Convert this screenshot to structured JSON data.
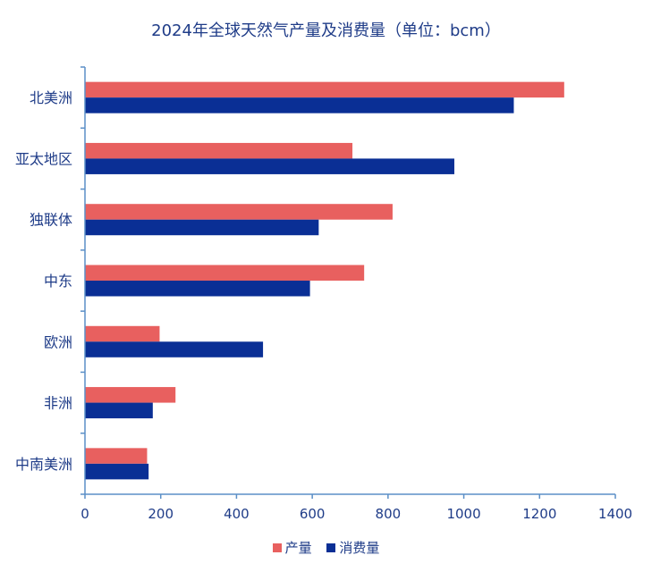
{
  "chart_data": {
    "type": "bar",
    "orientation": "horizontal",
    "title": "2024年全球天然气产量及消费量（单位：bcm）",
    "categories": [
      "北美洲",
      "亚太地区",
      "独联体",
      "中东",
      "欧洲",
      "非洲",
      "中南美洲"
    ],
    "series": [
      {
        "name": "产量",
        "color": "#e8605f",
        "values": [
          1265,
          706,
          812,
          737,
          197,
          239,
          164
        ]
      },
      {
        "name": "消费量",
        "color": "#0a2f95",
        "values": [
          1132,
          975,
          617,
          594,
          470,
          179,
          168
        ]
      }
    ],
    "xlim": [
      0,
      1400
    ],
    "xticks": [
      0,
      200,
      400,
      600,
      800,
      1000,
      1200,
      1400
    ],
    "xlabel": "",
    "ylabel": "",
    "grid": false,
    "legend_position": "bottom"
  }
}
